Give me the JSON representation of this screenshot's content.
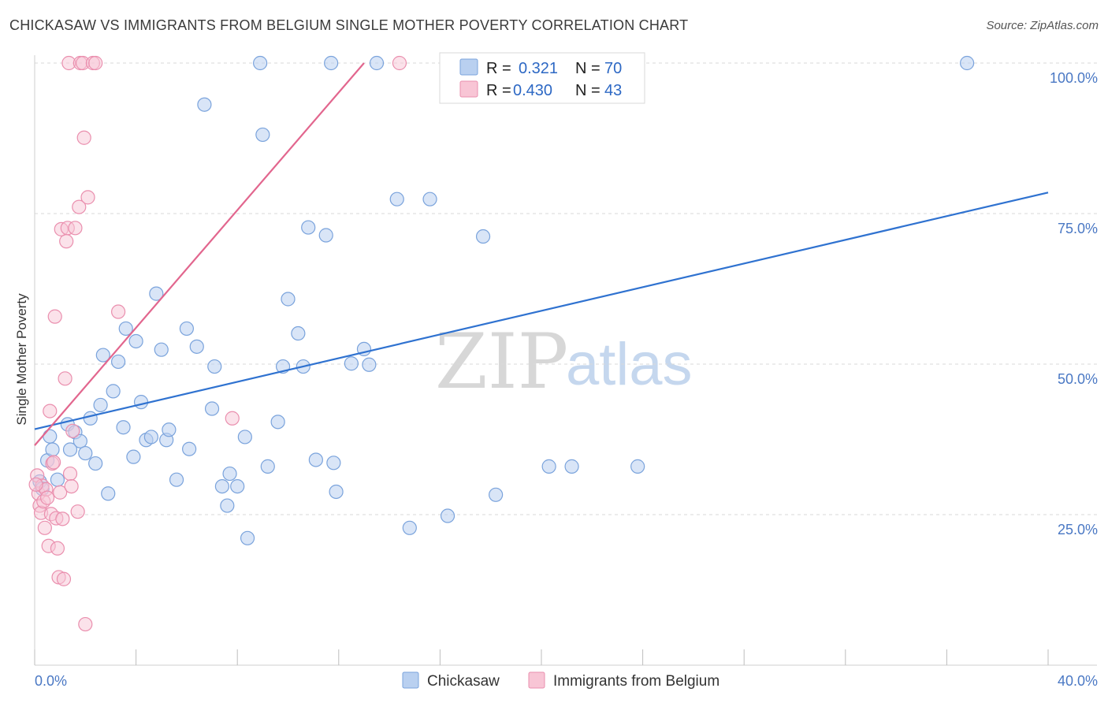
{
  "header": {
    "title": "CHICKASAW VS IMMIGRANTS FROM BELGIUM SINGLE MOTHER POVERTY CORRELATION CHART",
    "source": "Source: ZipAtlas.com"
  },
  "watermark": {
    "zip": "ZIP",
    "atlas": "atlas"
  },
  "legend": {
    "rows": [
      {
        "r_label": "R =",
        "r_value": "0.321",
        "n_label": "N =",
        "n_value": "70"
      },
      {
        "r_label": "R =",
        "r_value": "0.430",
        "n_label": "N =",
        "n_value": "43"
      }
    ]
  },
  "bottom_legend": {
    "series1": "Chickasaw",
    "series2": "Immigrants from Belgium"
  },
  "colors": {
    "blue_fill": "#b9d0f0",
    "blue_stroke": "#7aa3dc",
    "blue_line": "#2f72d0",
    "pink_fill": "#f8c5d5",
    "pink_stroke": "#ea8fae",
    "pink_line": "#e2668e",
    "grid": "#d9d9d9"
  },
  "chart_data": {
    "type": "scatter",
    "title": "CHICKASAW VS IMMIGRANTS FROM BELGIUM SINGLE MOTHER POVERTY CORRELATION CHART",
    "xlabel": "",
    "ylabel": "Single Mother Poverty",
    "xlim": [
      0,
      40
    ],
    "ylim": [
      0,
      102
    ],
    "x_tick_labels": [
      "0.0%",
      "40.0%"
    ],
    "y_ticks": [
      25,
      50,
      75,
      100
    ],
    "y_tick_labels": [
      "25.0%",
      "50.0%",
      "75.0%",
      "100.0%"
    ],
    "series": [
      {
        "name": "Chickasaw",
        "R": 0.321,
        "N": 70,
        "trend": {
          "x": [
            0,
            40
          ],
          "y": [
            39.2,
            78.5
          ]
        },
        "points": [
          [
            0.2,
            30.5
          ],
          [
            0.5,
            34
          ],
          [
            0.6,
            38
          ],
          [
            0.7,
            35.8
          ],
          [
            0.9,
            30.8
          ],
          [
            1.3,
            40
          ],
          [
            1.4,
            35.8
          ],
          [
            1.6,
            38.7
          ],
          [
            1.8,
            37.2
          ],
          [
            2.0,
            35.2
          ],
          [
            2.2,
            41
          ],
          [
            2.4,
            33.5
          ],
          [
            2.6,
            43.2
          ],
          [
            2.7,
            51.5
          ],
          [
            2.9,
            28.5
          ],
          [
            3.1,
            45.5
          ],
          [
            3.3,
            50.4
          ],
          [
            3.5,
            39.5
          ],
          [
            3.6,
            55.9
          ],
          [
            3.9,
            34.6
          ],
          [
            4.0,
            53.8
          ],
          [
            4.2,
            43.7
          ],
          [
            4.4,
            37.4
          ],
          [
            4.6,
            37.9
          ],
          [
            4.8,
            61.7
          ],
          [
            5.0,
            52.4
          ],
          [
            5.2,
            37.4
          ],
          [
            5.3,
            39.1
          ],
          [
            5.6,
            30.8
          ],
          [
            6.0,
            55.9
          ],
          [
            6.1,
            35.9
          ],
          [
            6.4,
            52.9
          ],
          [
            6.7,
            93.1
          ],
          [
            7.0,
            42.6
          ],
          [
            7.1,
            49.6
          ],
          [
            7.4,
            29.7
          ],
          [
            7.6,
            26.5
          ],
          [
            7.7,
            31.8
          ],
          [
            8.0,
            29.7
          ],
          [
            8.3,
            37.9
          ],
          [
            8.4,
            21.1
          ],
          [
            8.9,
            100
          ],
          [
            9.0,
            88.1
          ],
          [
            9.2,
            33
          ],
          [
            9.6,
            40.4
          ],
          [
            9.8,
            49.6
          ],
          [
            10.0,
            60.8
          ],
          [
            10.4,
            55.1
          ],
          [
            10.6,
            49.6
          ],
          [
            10.8,
            72.7
          ],
          [
            11.1,
            34.1
          ],
          [
            11.5,
            71.4
          ],
          [
            11.7,
            100
          ],
          [
            11.8,
            33.6
          ],
          [
            11.9,
            28.8
          ],
          [
            12.5,
            50.1
          ],
          [
            13.0,
            52.5
          ],
          [
            13.2,
            49.9
          ],
          [
            13.5,
            100
          ],
          [
            14.3,
            77.4
          ],
          [
            14.8,
            22.8
          ],
          [
            15.6,
            77.4
          ],
          [
            16.3,
            24.8
          ],
          [
            17.7,
            71.2
          ],
          [
            18.2,
            28.3
          ],
          [
            20.3,
            33
          ],
          [
            21.2,
            33
          ],
          [
            23.8,
            33
          ],
          [
            36.8,
            100
          ],
          [
            0.3,
            29.3
          ]
        ]
      },
      {
        "name": "Immigrants from Belgium",
        "R": 0.43,
        "N": 43,
        "trend": {
          "x": [
            0,
            13
          ],
          "y": [
            36.5,
            100
          ]
        },
        "points": [
          [
            0.1,
            31.5
          ],
          [
            0.15,
            28.5
          ],
          [
            0.2,
            26.5
          ],
          [
            0.25,
            25.3
          ],
          [
            0.3,
            29.8
          ],
          [
            0.35,
            27.2
          ],
          [
            0.4,
            22.8
          ],
          [
            0.45,
            29.2
          ],
          [
            0.5,
            27.8
          ],
          [
            0.55,
            19.8
          ],
          [
            0.6,
            42.2
          ],
          [
            0.65,
            25.1
          ],
          [
            0.7,
            33.5
          ],
          [
            0.75,
            33.7
          ],
          [
            0.8,
            57.9
          ],
          [
            0.85,
            24.4
          ],
          [
            0.9,
            19.4
          ],
          [
            0.95,
            14.6
          ],
          [
            1.0,
            28.7
          ],
          [
            1.05,
            72.4
          ],
          [
            1.1,
            24.3
          ],
          [
            1.15,
            14.3
          ],
          [
            1.2,
            47.6
          ],
          [
            1.25,
            70.4
          ],
          [
            1.3,
            72.6
          ],
          [
            1.35,
            100
          ],
          [
            1.4,
            31.8
          ],
          [
            1.45,
            29.7
          ],
          [
            1.5,
            38.9
          ],
          [
            1.6,
            72.6
          ],
          [
            1.7,
            25.5
          ],
          [
            1.75,
            76.1
          ],
          [
            1.8,
            100
          ],
          [
            1.9,
            100
          ],
          [
            1.95,
            87.6
          ],
          [
            2.0,
            6.8
          ],
          [
            2.1,
            77.7
          ],
          [
            2.3,
            100
          ],
          [
            2.4,
            100
          ],
          [
            3.3,
            58.7
          ],
          [
            7.8,
            41
          ],
          [
            14.4,
            100
          ],
          [
            0.05,
            30
          ]
        ]
      }
    ]
  }
}
